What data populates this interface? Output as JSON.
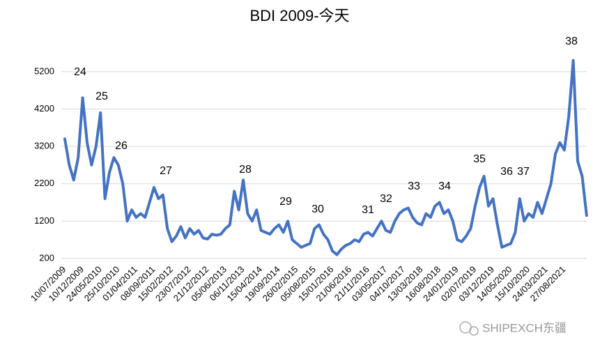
{
  "chart_data": {
    "type": "line",
    "title": "BDI  2009-今天",
    "categories": [
      "10/07/2009",
      null,
      null,
      null,
      "10/12/2009",
      null,
      null,
      null,
      "24/05/2010",
      null,
      null,
      null,
      "25/10/2010",
      null,
      null,
      null,
      "01/04/2011",
      null,
      null,
      null,
      "08/09/2011",
      null,
      null,
      null,
      "15/02/2012",
      null,
      null,
      null,
      "23/07/2012",
      null,
      null,
      null,
      "21/12/2012",
      null,
      null,
      null,
      "05/06/2013",
      null,
      null,
      null,
      "06/11/2013",
      null,
      null,
      null,
      "15/04/2014",
      null,
      null,
      null,
      "19/09/2014",
      null,
      null,
      null,
      "26/02/2015",
      null,
      null,
      null,
      "05/08/2015",
      null,
      null,
      null,
      "15/01/2016",
      null,
      null,
      null,
      "21/06/2016",
      null,
      null,
      null,
      "21/11/2016",
      null,
      null,
      null,
      "03/05/2017",
      null,
      null,
      null,
      "04/10/2017",
      null,
      null,
      null,
      "13/03/2018",
      null,
      null,
      null,
      "16/08/2018",
      null,
      null,
      null,
      "24/01/2019",
      null,
      null,
      null,
      "02/07/2019",
      null,
      null,
      null,
      "03/12/2019",
      null,
      null,
      null,
      "14/05/2020",
      null,
      null,
      null,
      "15/10/2020",
      null,
      null,
      null,
      "24/03/2021",
      null,
      null,
      null,
      "27/08/2021",
      null,
      null,
      null,
      null,
      null
    ],
    "series": [
      {
        "name": "BDI",
        "color": "#4472c4",
        "values": [
          3400,
          2700,
          2300,
          2900,
          4500,
          3300,
          2700,
          3200,
          4100,
          1800,
          2500,
          2900,
          2700,
          2200,
          1200,
          1500,
          1300,
          1400,
          1300,
          1700,
          2100,
          1800,
          1900,
          1000,
          650,
          800,
          1050,
          750,
          1000,
          850,
          950,
          750,
          720,
          850,
          820,
          850,
          1000,
          1100,
          2000,
          1500,
          2300,
          1400,
          1200,
          1500,
          950,
          900,
          850,
          1000,
          1100,
          900,
          1200,
          700,
          600,
          500,
          550,
          600,
          1000,
          1100,
          850,
          700,
          400,
          300,
          450,
          550,
          600,
          700,
          650,
          850,
          900,
          800,
          1000,
          1200,
          950,
          900,
          1200,
          1400,
          1500,
          1550,
          1300,
          1150,
          1100,
          1400,
          1300,
          1600,
          1700,
          1400,
          1500,
          1200,
          700,
          650,
          800,
          1000,
          1600,
          2100,
          2400,
          1600,
          1800,
          1100,
          500,
          550,
          600,
          900,
          1800,
          1200,
          1400,
          1300,
          1700,
          1400,
          1800,
          2200,
          3000,
          3300,
          3100,
          4000,
          5500,
          2800,
          2400,
          1350
        ]
      }
    ],
    "ylim": [
      200,
      5700
    ],
    "yticks": [
      200,
      1200,
      2200,
      3200,
      4200,
      5200
    ],
    "grid": true,
    "annotations": [
      "24",
      "25",
      "26",
      "27",
      "28",
      "29",
      "30",
      "31",
      "32",
      "33",
      "34",
      "35",
      "36",
      "37",
      "38"
    ],
    "watermark": "SHIPEXCH东疆"
  }
}
